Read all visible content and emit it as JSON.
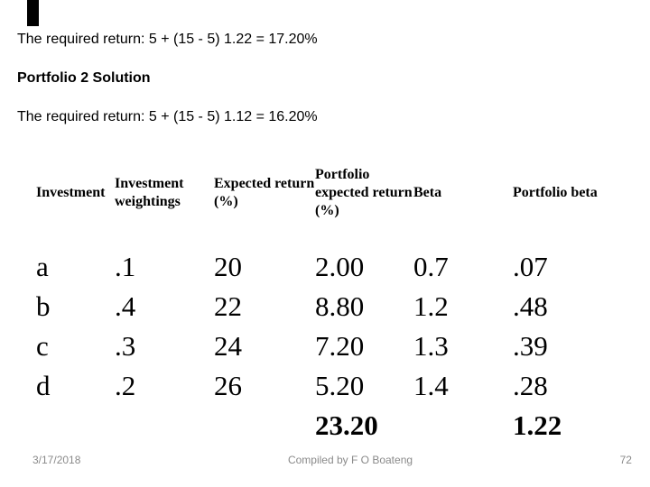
{
  "slide": {
    "line1": "The required return: 5 + (15 - 5) 1.22 = 17.20%",
    "heading": "Portfolio 2 Solution",
    "line2": "The required return: 5 + (15 - 5) 1.12 = 16.20%"
  },
  "table": {
    "headers": [
      [
        "Investment"
      ],
      [
        "Investment",
        "weightings"
      ],
      [
        "Expected return",
        "(%)"
      ],
      [
        "Portfolio",
        "expected return",
        "(%)"
      ],
      [
        "Beta"
      ],
      [
        "Portfolio beta"
      ]
    ],
    "rows": [
      [
        "a",
        ".1",
        "20",
        "2.00",
        "0.7",
        ".07"
      ],
      [
        "b",
        ".4",
        "22",
        "8.80",
        "1.2",
        ".48"
      ],
      [
        "c",
        ".3",
        "24",
        "7.20",
        "1.3",
        ".39"
      ],
      [
        "d",
        ".2",
        "26",
        "5.20",
        "1.4",
        ".28"
      ]
    ],
    "totals": {
      "portfolio_expected_return": "23.20",
      "portfolio_beta": "1.22"
    }
  },
  "footer": {
    "date": "3/17/2018",
    "credit": "Compiled by F O Boateng",
    "page_number": "72"
  },
  "colors": {
    "background": "#ffffff",
    "text": "#000000",
    "footer_text": "#8a8a8a",
    "accent_bar": "#000000"
  }
}
